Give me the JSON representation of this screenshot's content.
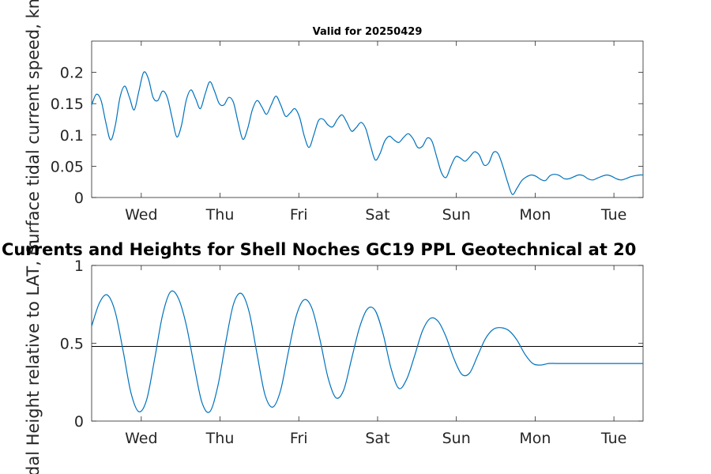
{
  "chart_data": [
    {
      "type": "line",
      "title": "Valid for 20250429",
      "ylabel": "Surface tidal current speed, kn",
      "xlabel": "",
      "x_ticks": [
        "Wed",
        "Thu",
        "Fri",
        "Sat",
        "Sun",
        "Mon",
        "Tue"
      ],
      "y_ticks": [
        "0",
        "0.05",
        "0.1",
        "0.15",
        "0.2"
      ],
      "ylim": [
        0,
        0.25
      ],
      "xlim_days": [
        0,
        7
      ],
      "grid": false,
      "series_color": "#0072BD",
      "x": [
        0.0,
        0.06,
        0.12,
        0.18,
        0.24,
        0.3,
        0.36,
        0.42,
        0.48,
        0.54,
        0.6,
        0.66,
        0.72,
        0.78,
        0.84,
        0.9,
        0.96,
        1.02,
        1.08,
        1.14,
        1.2,
        1.26,
        1.32,
        1.38,
        1.44,
        1.5,
        1.56,
        1.62,
        1.68,
        1.74,
        1.8,
        1.86,
        1.92,
        1.98,
        2.04,
        2.1,
        2.16,
        2.22,
        2.28,
        2.34,
        2.4,
        2.46,
        2.52,
        2.58,
        2.64,
        2.7,
        2.76,
        2.82,
        2.88,
        2.94,
        3.0,
        3.06,
        3.12,
        3.18,
        3.24,
        3.3,
        3.36,
        3.42,
        3.48,
        3.54,
        3.6,
        3.66,
        3.72,
        3.78,
        3.84,
        3.9,
        3.96,
        4.02,
        4.08,
        4.14,
        4.2,
        4.26,
        4.32,
        4.38,
        4.44,
        4.5,
        4.56,
        4.62,
        4.68,
        4.74,
        4.8,
        4.86,
        4.92,
        4.98,
        5.04,
        5.1,
        5.16,
        5.22,
        5.28,
        5.34,
        5.4,
        5.46,
        5.52,
        5.58,
        5.64,
        5.7,
        5.76,
        5.82,
        5.88,
        5.94,
        6.0,
        6.06,
        6.12,
        6.18,
        6.24,
        6.3,
        6.36,
        6.42,
        6.48,
        6.54,
        6.6,
        6.66,
        6.72,
        6.78,
        6.84,
        6.9,
        6.96,
        7.0
      ],
      "y": [
        0.148,
        0.165,
        0.155,
        0.12,
        0.092,
        0.115,
        0.16,
        0.178,
        0.16,
        0.14,
        0.17,
        0.2,
        0.19,
        0.16,
        0.155,
        0.17,
        0.16,
        0.128,
        0.097,
        0.115,
        0.155,
        0.172,
        0.158,
        0.142,
        0.165,
        0.185,
        0.17,
        0.15,
        0.148,
        0.16,
        0.152,
        0.12,
        0.093,
        0.11,
        0.14,
        0.155,
        0.145,
        0.133,
        0.148,
        0.162,
        0.148,
        0.13,
        0.135,
        0.142,
        0.128,
        0.098,
        0.08,
        0.1,
        0.123,
        0.125,
        0.116,
        0.113,
        0.125,
        0.132,
        0.12,
        0.106,
        0.112,
        0.12,
        0.11,
        0.083,
        0.06,
        0.07,
        0.09,
        0.098,
        0.092,
        0.088,
        0.096,
        0.102,
        0.094,
        0.08,
        0.082,
        0.095,
        0.09,
        0.065,
        0.04,
        0.032,
        0.05,
        0.065,
        0.063,
        0.058,
        0.065,
        0.073,
        0.068,
        0.052,
        0.055,
        0.072,
        0.07,
        0.05,
        0.025,
        0.005,
        0.015,
        0.027,
        0.033,
        0.036,
        0.034,
        0.029,
        0.027,
        0.035,
        0.037,
        0.035,
        0.03,
        0.03,
        0.033,
        0.036,
        0.035,
        0.03,
        0.028,
        0.031,
        0.034,
        0.036,
        0.034,
        0.03,
        0.028,
        0.03,
        0.033,
        0.035,
        0.036,
        0.036
      ]
    },
    {
      "type": "line",
      "title": "Currents and Heights for Shell Noches   GC19 PPL  Geotechnical at 20",
      "ylabel": "Tidal Height relative to LAT, m",
      "xlabel": "",
      "x_ticks": [
        "Wed",
        "Thu",
        "Fri",
        "Sat",
        "Sun",
        "Mon",
        "Tue"
      ],
      "y_ticks": [
        "0",
        "0.5",
        "1"
      ],
      "ylim": [
        0,
        1
      ],
      "xlim_days": [
        0,
        7
      ],
      "grid": false,
      "reference_line": 0.48,
      "series_color": "#0072BD",
      "x": [
        0.0,
        0.1,
        0.2,
        0.3,
        0.4,
        0.5,
        0.6,
        0.7,
        0.8,
        0.9,
        1.0,
        1.1,
        1.2,
        1.3,
        1.4,
        1.5,
        1.6,
        1.7,
        1.8,
        1.9,
        2.0,
        2.1,
        2.2,
        2.3,
        2.4,
        2.5,
        2.6,
        2.7,
        2.8,
        2.9,
        3.0,
        3.1,
        3.2,
        3.3,
        3.4,
        3.5,
        3.6,
        3.7,
        3.8,
        3.9,
        4.0,
        4.1,
        4.2,
        4.3,
        4.4,
        4.5,
        4.6,
        4.7,
        4.8,
        4.9,
        5.0,
        5.1,
        5.2,
        5.3,
        5.4,
        5.5,
        5.6,
        5.7,
        5.8,
        5.9,
        6.0,
        6.1,
        6.2,
        6.3,
        6.4,
        6.5,
        6.6,
        6.7,
        6.8,
        6.9,
        7.0
      ],
      "y": [
        0.61,
        0.76,
        0.81,
        0.7,
        0.45,
        0.18,
        0.06,
        0.14,
        0.4,
        0.68,
        0.83,
        0.79,
        0.62,
        0.36,
        0.12,
        0.06,
        0.22,
        0.5,
        0.75,
        0.82,
        0.7,
        0.43,
        0.17,
        0.09,
        0.2,
        0.45,
        0.68,
        0.78,
        0.72,
        0.52,
        0.28,
        0.15,
        0.2,
        0.4,
        0.6,
        0.72,
        0.71,
        0.56,
        0.34,
        0.21,
        0.27,
        0.42,
        0.58,
        0.66,
        0.64,
        0.54,
        0.4,
        0.3,
        0.31,
        0.42,
        0.53,
        0.59,
        0.6,
        0.58,
        0.52,
        0.43,
        0.37,
        0.36,
        0.37,
        0.37,
        0.37,
        0.37,
        0.37,
        0.37,
        0.37,
        0.37,
        0.37,
        0.37,
        0.37,
        0.37,
        0.37
      ]
    }
  ]
}
